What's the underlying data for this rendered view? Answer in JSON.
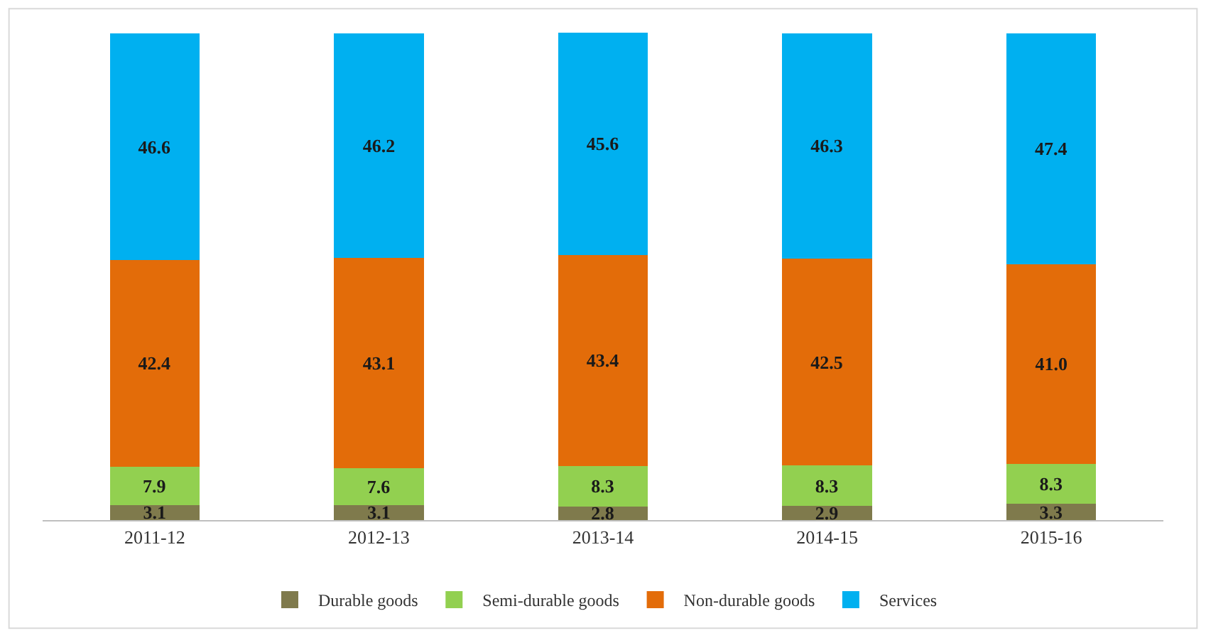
{
  "chart_data": {
    "type": "bar",
    "stacked": true,
    "data_labels": true,
    "legend": "bottom",
    "tick_labels": "x",
    "ylim": [
      0,
      101
    ],
    "categories": [
      "2011-12",
      "2012-13",
      "2013-14",
      "2014-15",
      "2015-16"
    ],
    "series": [
      {
        "name": "Durable goods",
        "color": "#7f7a4c",
        "values": [
          3.1,
          3.1,
          2.8,
          2.9,
          3.3
        ]
      },
      {
        "name": "Semi-durable goods",
        "color": "#92d050",
        "values": [
          7.9,
          7.6,
          8.3,
          8.3,
          8.3
        ]
      },
      {
        "name": "Non-durable goods",
        "color": "#e36c09",
        "values": [
          42.4,
          43.1,
          43.4,
          42.5,
          41.0
        ],
        "value_labels": [
          "42.4",
          "43.1",
          "43.4",
          "42.5",
          "41.0"
        ]
      },
      {
        "name": "Services",
        "color": "#00b0f0",
        "values": [
          46.6,
          46.2,
          45.6,
          46.3,
          47.4
        ]
      }
    ]
  }
}
